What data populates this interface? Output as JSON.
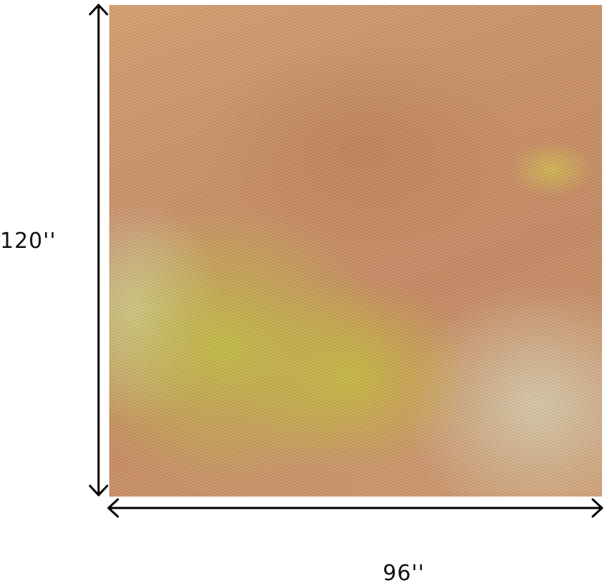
{
  "product_image": {
    "subject": "rug",
    "colors": {
      "rust": "#c68a64",
      "yellow_green": "#c4be46",
      "pale_beige": "#d7cdaf"
    }
  },
  "dimensions": {
    "height_label": "120''",
    "width_label": "96''"
  }
}
